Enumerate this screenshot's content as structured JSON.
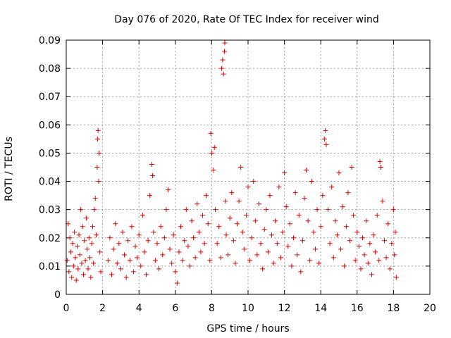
{
  "chart_data": {
    "type": "scatter",
    "title": "Day 076 of 2020, Rate Of TEC Index for receiver wind",
    "xlabel": "GPS time / hours",
    "ylabel": "ROTI / TECUs",
    "xlim": [
      0,
      20
    ],
    "ylim": [
      0,
      0.09
    ],
    "x_ticks": [
      "0",
      "2",
      "4",
      "6",
      "8",
      "10",
      "12",
      "14",
      "16",
      "18",
      "20"
    ],
    "y_ticks": [
      "0",
      "0.01",
      "0.02",
      "0.03",
      "0.04",
      "0.05",
      "0.06",
      "0.07",
      "0.08",
      "0.09"
    ],
    "grid": true,
    "marker": "+",
    "color": "#e00000",
    "series": [
      {
        "points": [
          [
            0.05,
            0.012
          ],
          [
            0.1,
            0.025
          ],
          [
            0.15,
            0.008
          ],
          [
            0.2,
            0.02
          ],
          [
            0.25,
            0.015
          ],
          [
            0.3,
            0.006
          ],
          [
            0.35,
            0.018
          ],
          [
            0.4,
            0.01
          ],
          [
            0.45,
            0.022
          ],
          [
            0.5,
            0.013
          ],
          [
            0.55,
            0.005
          ],
          [
            0.6,
            0.017
          ],
          [
            0.65,
            0.009
          ],
          [
            0.7,
            0.021
          ],
          [
            0.75,
            0.014
          ],
          [
            0.8,
            0.03
          ],
          [
            0.85,
            0.011
          ],
          [
            0.9,
            0.024
          ],
          [
            0.95,
            0.007
          ],
          [
            1.0,
            0.019
          ],
          [
            1.05,
            0.012
          ],
          [
            1.1,
            0.027
          ],
          [
            1.15,
            0.016
          ],
          [
            1.2,
            0.009
          ],
          [
            1.25,
            0.02
          ],
          [
            1.3,
            0.013
          ],
          [
            1.35,
            0.006
          ],
          [
            1.4,
            0.018
          ],
          [
            1.45,
            0.024
          ],
          [
            1.5,
            0.011
          ],
          [
            1.55,
            0.03
          ],
          [
            1.6,
            0.034
          ],
          [
            1.65,
            0.021
          ],
          [
            1.7,
            0.045
          ],
          [
            1.72,
            0.055
          ],
          [
            1.75,
            0.058
          ],
          [
            1.78,
            0.04
          ],
          [
            1.8,
            0.05
          ],
          [
            1.85,
            0.015
          ],
          [
            1.9,
            0.008
          ],
          [
            2.3,
            0.012
          ],
          [
            2.4,
            0.02
          ],
          [
            2.5,
            0.007
          ],
          [
            2.6,
            0.016
          ],
          [
            2.7,
            0.025
          ],
          [
            2.8,
            0.011
          ],
          [
            2.9,
            0.018
          ],
          [
            3.0,
            0.009
          ],
          [
            3.1,
            0.022
          ],
          [
            3.2,
            0.014
          ],
          [
            3.3,
            0.006
          ],
          [
            3.4,
            0.019
          ],
          [
            3.5,
            0.012
          ],
          [
            3.6,
            0.024
          ],
          [
            3.7,
            0.008
          ],
          [
            3.8,
            0.017
          ],
          [
            3.9,
            0.013
          ],
          [
            4.0,
            0.021
          ],
          [
            4.1,
            0.01
          ],
          [
            4.2,
            0.028
          ],
          [
            4.3,
            0.015
          ],
          [
            4.4,
            0.007
          ],
          [
            4.5,
            0.019
          ],
          [
            4.6,
            0.035
          ],
          [
            4.7,
            0.046
          ],
          [
            4.75,
            0.042
          ],
          [
            4.8,
            0.022
          ],
          [
            4.9,
            0.012
          ],
          [
            5.0,
            0.018
          ],
          [
            5.1,
            0.009
          ],
          [
            5.2,
            0.024
          ],
          [
            5.3,
            0.014
          ],
          [
            5.4,
            0.02
          ],
          [
            5.5,
            0.03
          ],
          [
            5.6,
            0.037
          ],
          [
            5.7,
            0.016
          ],
          [
            5.8,
            0.011
          ],
          [
            5.9,
            0.021
          ],
          [
            6.0,
            0.008
          ],
          [
            6.1,
            0.004
          ],
          [
            6.2,
            0.015
          ],
          [
            6.3,
            0.024
          ],
          [
            6.4,
            0.012
          ],
          [
            6.5,
            0.019
          ],
          [
            6.6,
            0.03
          ],
          [
            6.7,
            0.017
          ],
          [
            6.8,
            0.01
          ],
          [
            6.9,
            0.026
          ],
          [
            7.0,
            0.02
          ],
          [
            7.1,
            0.013
          ],
          [
            7.2,
            0.032
          ],
          [
            7.3,
            0.022
          ],
          [
            7.4,
            0.015
          ],
          [
            7.5,
            0.028
          ],
          [
            7.6,
            0.018
          ],
          [
            7.7,
            0.035
          ],
          [
            7.8,
            0.025
          ],
          [
            7.9,
            0.012
          ],
          [
            7.95,
            0.057
          ],
          [
            8.0,
            0.05
          ],
          [
            8.1,
            0.044
          ],
          [
            8.15,
            0.052
          ],
          [
            8.2,
            0.03
          ],
          [
            8.3,
            0.018
          ],
          [
            8.4,
            0.024
          ],
          [
            8.5,
            0.013
          ],
          [
            8.55,
            0.08
          ],
          [
            8.6,
            0.083
          ],
          [
            8.65,
            0.078
          ],
          [
            8.7,
            0.086
          ],
          [
            8.72,
            0.089
          ],
          [
            8.75,
            0.033
          ],
          [
            8.8,
            0.021
          ],
          [
            8.9,
            0.014
          ],
          [
            9.0,
            0.027
          ],
          [
            9.1,
            0.036
          ],
          [
            9.2,
            0.019
          ],
          [
            9.3,
            0.011
          ],
          [
            9.4,
            0.025
          ],
          [
            9.5,
            0.033
          ],
          [
            9.6,
            0.045
          ],
          [
            9.7,
            0.022
          ],
          [
            9.8,
            0.016
          ],
          [
            9.9,
            0.028
          ],
          [
            10.0,
            0.038
          ],
          [
            10.1,
            0.012
          ],
          [
            10.2,
            0.02
          ],
          [
            10.3,
            0.04
          ],
          [
            10.4,
            0.026
          ],
          [
            10.5,
            0.014
          ],
          [
            10.6,
            0.032
          ],
          [
            10.7,
            0.018
          ],
          [
            10.8,
            0.009
          ],
          [
            10.9,
            0.023
          ],
          [
            11.0,
            0.03
          ],
          [
            11.1,
            0.015
          ],
          [
            11.2,
            0.035
          ],
          [
            11.3,
            0.021
          ],
          [
            11.4,
            0.011
          ],
          [
            11.5,
            0.026
          ],
          [
            11.6,
            0.018
          ],
          [
            11.7,
            0.038
          ],
          [
            11.8,
            0.013
          ],
          [
            11.9,
            0.022
          ],
          [
            12.0,
            0.043
          ],
          [
            12.1,
            0.031
          ],
          [
            12.2,
            0.017
          ],
          [
            12.3,
            0.025
          ],
          [
            12.4,
            0.01
          ],
          [
            12.5,
            0.02
          ],
          [
            12.6,
            0.036
          ],
          [
            12.7,
            0.014
          ],
          [
            12.8,
            0.028
          ],
          [
            12.9,
            0.008
          ],
          [
            13.0,
            0.019
          ],
          [
            13.1,
            0.034
          ],
          [
            13.2,
            0.044
          ],
          [
            13.3,
            0.026
          ],
          [
            13.4,
            0.012
          ],
          [
            13.5,
            0.04
          ],
          [
            13.6,
            0.022
          ],
          [
            13.7,
            0.016
          ],
          [
            13.8,
            0.03
          ],
          [
            13.9,
            0.011
          ],
          [
            14.0,
            0.024
          ],
          [
            14.1,
            0.035
          ],
          [
            14.2,
            0.055
          ],
          [
            14.25,
            0.058
          ],
          [
            14.3,
            0.053
          ],
          [
            14.4,
            0.03
          ],
          [
            14.5,
            0.018
          ],
          [
            14.6,
            0.038
          ],
          [
            14.7,
            0.013
          ],
          [
            14.8,
            0.026
          ],
          [
            14.9,
            0.021
          ],
          [
            15.0,
            0.043
          ],
          [
            15.1,
            0.016
          ],
          [
            15.2,
            0.031
          ],
          [
            15.3,
            0.01
          ],
          [
            15.4,
            0.024
          ],
          [
            15.5,
            0.036
          ],
          [
            15.6,
            0.019
          ],
          [
            15.7,
            0.045
          ],
          [
            15.8,
            0.028
          ],
          [
            15.9,
            0.012
          ],
          [
            16.0,
            0.022
          ],
          [
            16.1,
            0.017
          ],
          [
            16.2,
            0.009
          ],
          [
            16.3,
            0.02
          ],
          [
            16.4,
            0.014
          ],
          [
            16.5,
            0.026
          ],
          [
            16.6,
            0.011
          ],
          [
            16.7,
            0.018
          ],
          [
            16.8,
            0.007
          ],
          [
            16.9,
            0.021
          ],
          [
            17.0,
            0.015
          ],
          [
            17.1,
            0.028
          ],
          [
            17.2,
            0.012
          ],
          [
            17.25,
            0.047
          ],
          [
            17.3,
            0.045
          ],
          [
            17.4,
            0.033
          ],
          [
            17.5,
            0.019
          ],
          [
            17.6,
            0.013
          ],
          [
            17.7,
            0.025
          ],
          [
            17.8,
            0.009
          ],
          [
            17.9,
            0.018
          ],
          [
            18.0,
            0.03
          ],
          [
            18.05,
            0.014
          ],
          [
            18.1,
            0.022
          ],
          [
            18.15,
            0.006
          ]
        ]
      }
    ]
  }
}
